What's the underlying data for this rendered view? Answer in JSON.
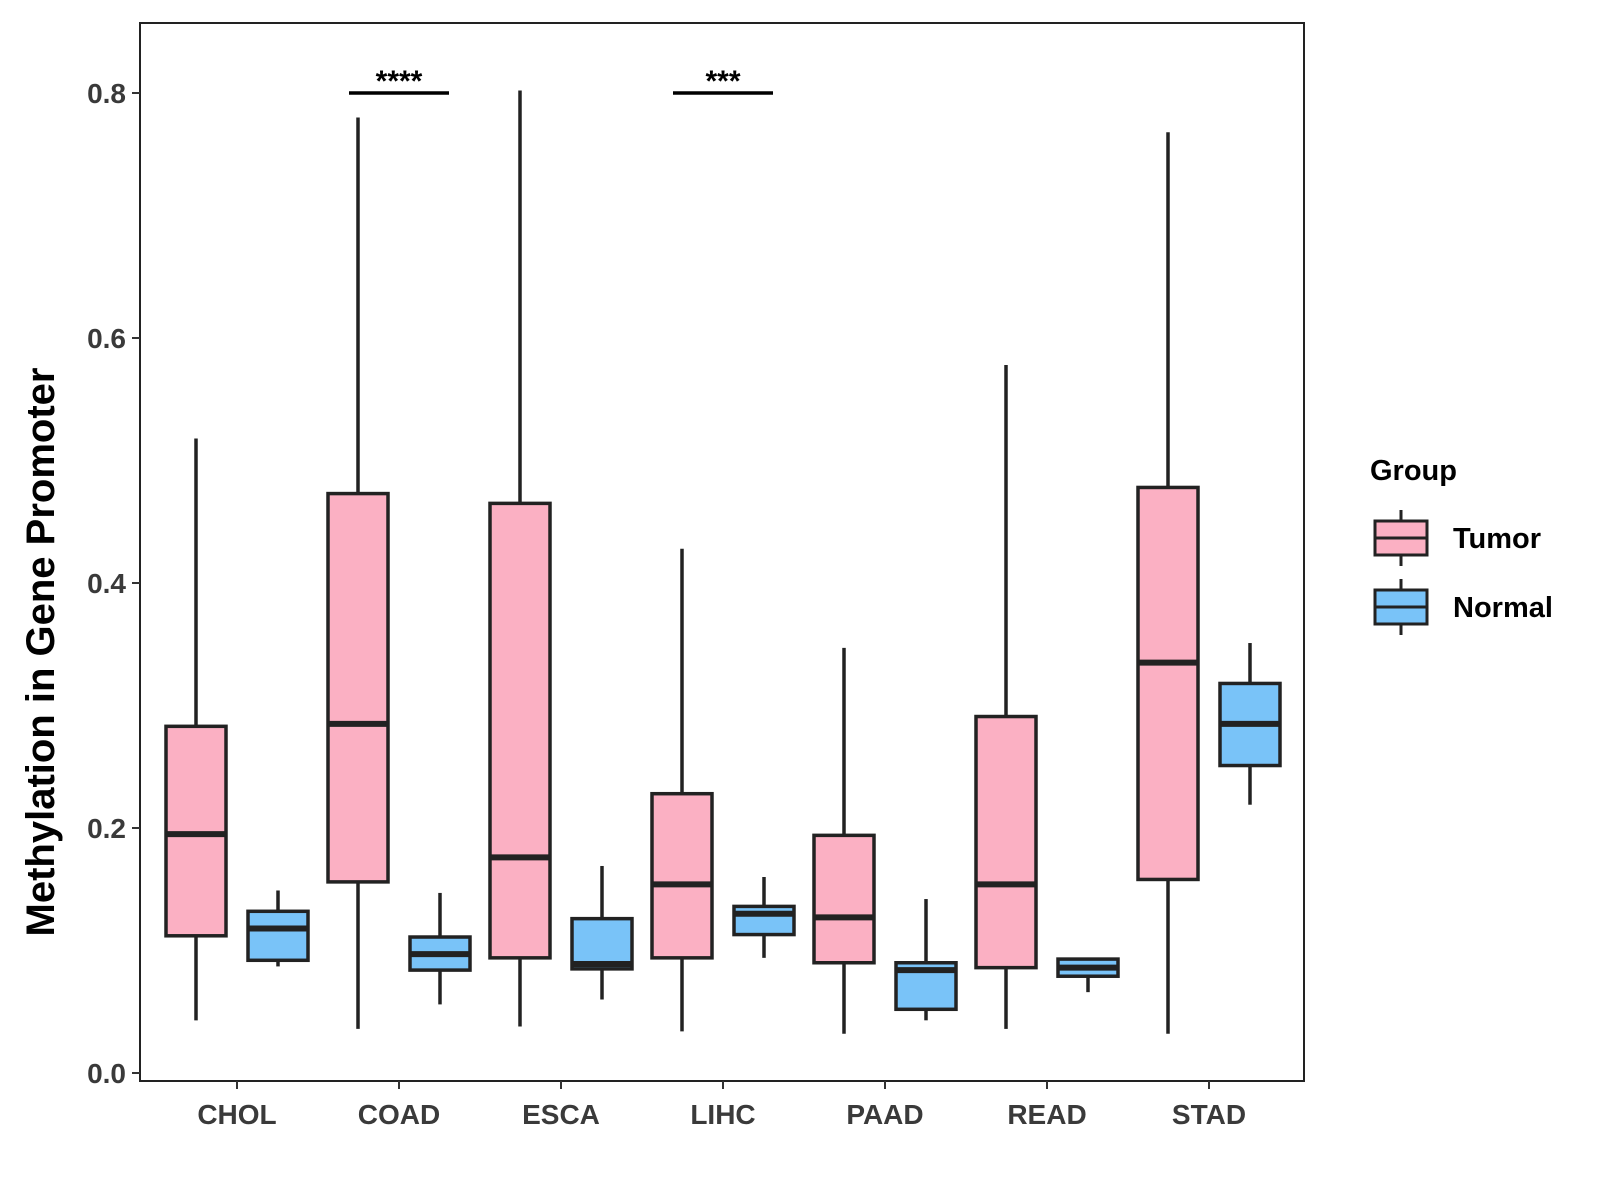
{
  "chart_data": {
    "type": "boxplot",
    "title": "",
    "xlabel": "",
    "ylabel": "Methylation in Gene Promoter",
    "ylim": [
      0.0,
      0.85
    ],
    "yticks": [
      0.0,
      0.2,
      0.4,
      0.6,
      0.8
    ],
    "ytick_labels": [
      "0.0",
      "0.2",
      "0.4",
      "0.6",
      "0.8"
    ],
    "categories": [
      "CHOL",
      "COAD",
      "ESCA",
      "LIHC",
      "PAAD",
      "READ",
      "STAD"
    ],
    "legend": {
      "title": "Group",
      "position": "right",
      "entries": [
        {
          "name": "Tumor",
          "color": "#FBB0C3"
        },
        {
          "name": "Normal",
          "color": "#79C3F8"
        }
      ]
    },
    "series": [
      {
        "name": "Tumor",
        "color": "#FBB0C3",
        "boxes": [
          {
            "category": "CHOL",
            "min": 0.043,
            "q1": 0.112,
            "median": 0.195,
            "q3": 0.283,
            "max": 0.518
          },
          {
            "category": "COAD",
            "min": 0.036,
            "q1": 0.156,
            "median": 0.285,
            "q3": 0.473,
            "max": 0.78
          },
          {
            "category": "ESCA",
            "min": 0.038,
            "q1": 0.094,
            "median": 0.176,
            "q3": 0.465,
            "max": 0.802
          },
          {
            "category": "LIHC",
            "min": 0.034,
            "q1": 0.094,
            "median": 0.154,
            "q3": 0.228,
            "max": 0.428
          },
          {
            "category": "PAAD",
            "min": 0.032,
            "q1": 0.09,
            "median": 0.127,
            "q3": 0.194,
            "max": 0.347
          },
          {
            "category": "READ",
            "min": 0.036,
            "q1": 0.086,
            "median": 0.154,
            "q3": 0.291,
            "max": 0.578
          },
          {
            "category": "STAD",
            "min": 0.032,
            "q1": 0.158,
            "median": 0.335,
            "q3": 0.478,
            "max": 0.768
          }
        ]
      },
      {
        "name": "Normal",
        "color": "#79C3F8",
        "boxes": [
          {
            "category": "CHOL",
            "min": 0.087,
            "q1": 0.092,
            "median": 0.118,
            "q3": 0.132,
            "max": 0.149
          },
          {
            "category": "COAD",
            "min": 0.056,
            "q1": 0.084,
            "median": 0.097,
            "q3": 0.111,
            "max": 0.147
          },
          {
            "category": "ESCA",
            "min": 0.06,
            "q1": 0.085,
            "median": 0.089,
            "q3": 0.126,
            "max": 0.169
          },
          {
            "category": "LIHC",
            "min": 0.094,
            "q1": 0.113,
            "median": 0.13,
            "q3": 0.136,
            "max": 0.16
          },
          {
            "category": "PAAD",
            "min": 0.043,
            "q1": 0.052,
            "median": 0.084,
            "q3": 0.09,
            "max": 0.142
          },
          {
            "category": "READ",
            "min": 0.066,
            "q1": 0.079,
            "median": 0.086,
            "q3": 0.093,
            "max": 0.093
          },
          {
            "category": "STAD",
            "min": 0.219,
            "q1": 0.251,
            "median": 0.285,
            "q3": 0.318,
            "max": 0.351
          }
        ]
      }
    ],
    "annotations": [
      {
        "category": "COAD",
        "label": "****",
        "y": 0.8
      },
      {
        "category": "LIHC",
        "label": "***",
        "y": 0.8
      }
    ],
    "grid": false
  }
}
